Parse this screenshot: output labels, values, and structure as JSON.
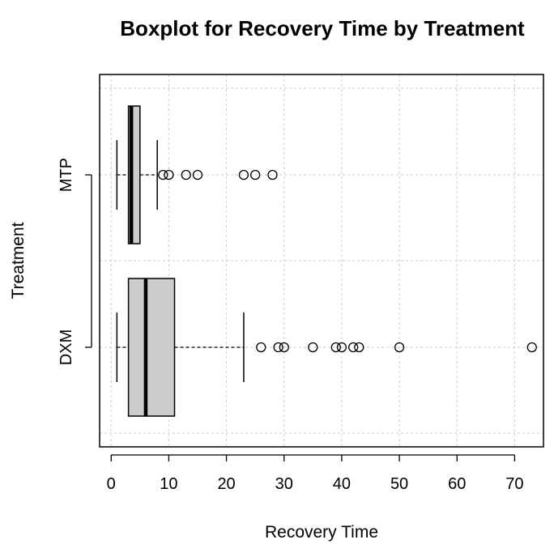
{
  "chart_data": {
    "type": "boxplot",
    "orientation": "horizontal",
    "title": "Boxplot for Recovery Time by Treatment",
    "xlabel": "Recovery Time",
    "ylabel": "Treatment",
    "xlim": [
      -2,
      75
    ],
    "x_ticks": [
      "0",
      "10",
      "20",
      "30",
      "40",
      "50",
      "60",
      "70"
    ],
    "grid": true,
    "box_fill": "#cccccc",
    "groups": [
      {
        "name": "DXM",
        "whisker_low": 1,
        "q1": 3,
        "median": 6,
        "q3": 11,
        "whisker_high": 23,
        "outliers": [
          26,
          29,
          30,
          35,
          39,
          40,
          42,
          43,
          50,
          73
        ]
      },
      {
        "name": "MTP",
        "whisker_low": 1,
        "q1": 3,
        "median": 3.5,
        "q3": 5,
        "whisker_high": 8,
        "outliers": [
          9,
          10,
          13,
          15,
          23,
          25,
          28
        ]
      }
    ]
  }
}
